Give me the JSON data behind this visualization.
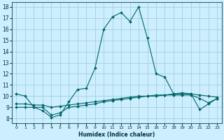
{
  "xlabel": "Humidex (Indice chaleur)",
  "bg_color": "#cceeff",
  "grid_color": "#99cccc",
  "line_color": "#006666",
  "xlim": [
    -0.5,
    23.5
  ],
  "ylim": [
    7.6,
    18.4
  ],
  "xticks": [
    0,
    1,
    2,
    3,
    4,
    5,
    6,
    7,
    8,
    9,
    10,
    11,
    12,
    13,
    14,
    15,
    16,
    17,
    18,
    19,
    20,
    21,
    22,
    23
  ],
  "yticks": [
    8,
    9,
    10,
    11,
    12,
    13,
    14,
    15,
    16,
    17,
    18
  ],
  "curve1_x": [
    0,
    1,
    2,
    3,
    4,
    5,
    6,
    7,
    8,
    9,
    10,
    11,
    12,
    13,
    14,
    15,
    16,
    17,
    18,
    19,
    20,
    21,
    22,
    23
  ],
  "curve1_y": [
    10.2,
    10.0,
    9.0,
    8.7,
    8.1,
    8.3,
    9.5,
    10.6,
    10.7,
    12.5,
    16.0,
    17.1,
    17.5,
    16.7,
    18.0,
    15.2,
    12.0,
    11.7,
    10.2,
    10.3,
    10.2,
    8.8,
    9.3,
    9.8
  ],
  "curve2_x": [
    0,
    1,
    2,
    3,
    4,
    5,
    6,
    7,
    8,
    9,
    10,
    11,
    12,
    13,
    14,
    15,
    16,
    17,
    18,
    19,
    20,
    21,
    22,
    23
  ],
  "curve2_y": [
    9.0,
    9.0,
    9.0,
    9.0,
    8.3,
    8.5,
    9.0,
    9.1,
    9.2,
    9.3,
    9.5,
    9.6,
    9.7,
    9.8,
    9.9,
    10.0,
    10.0,
    10.1,
    10.1,
    10.1,
    10.1,
    9.8,
    9.4,
    9.8
  ],
  "curve3_x": [
    0,
    1,
    2,
    3,
    4,
    5,
    6,
    7,
    8,
    9,
    10,
    11,
    12,
    13,
    14,
    15,
    16,
    17,
    18,
    19,
    20,
    21,
    22,
    23
  ],
  "curve3_y": [
    9.3,
    9.3,
    9.2,
    9.2,
    9.0,
    9.1,
    9.2,
    9.3,
    9.4,
    9.5,
    9.6,
    9.7,
    9.8,
    9.9,
    10.0,
    10.0,
    10.1,
    10.1,
    10.2,
    10.2,
    10.2,
    10.1,
    10.0,
    9.9
  ]
}
